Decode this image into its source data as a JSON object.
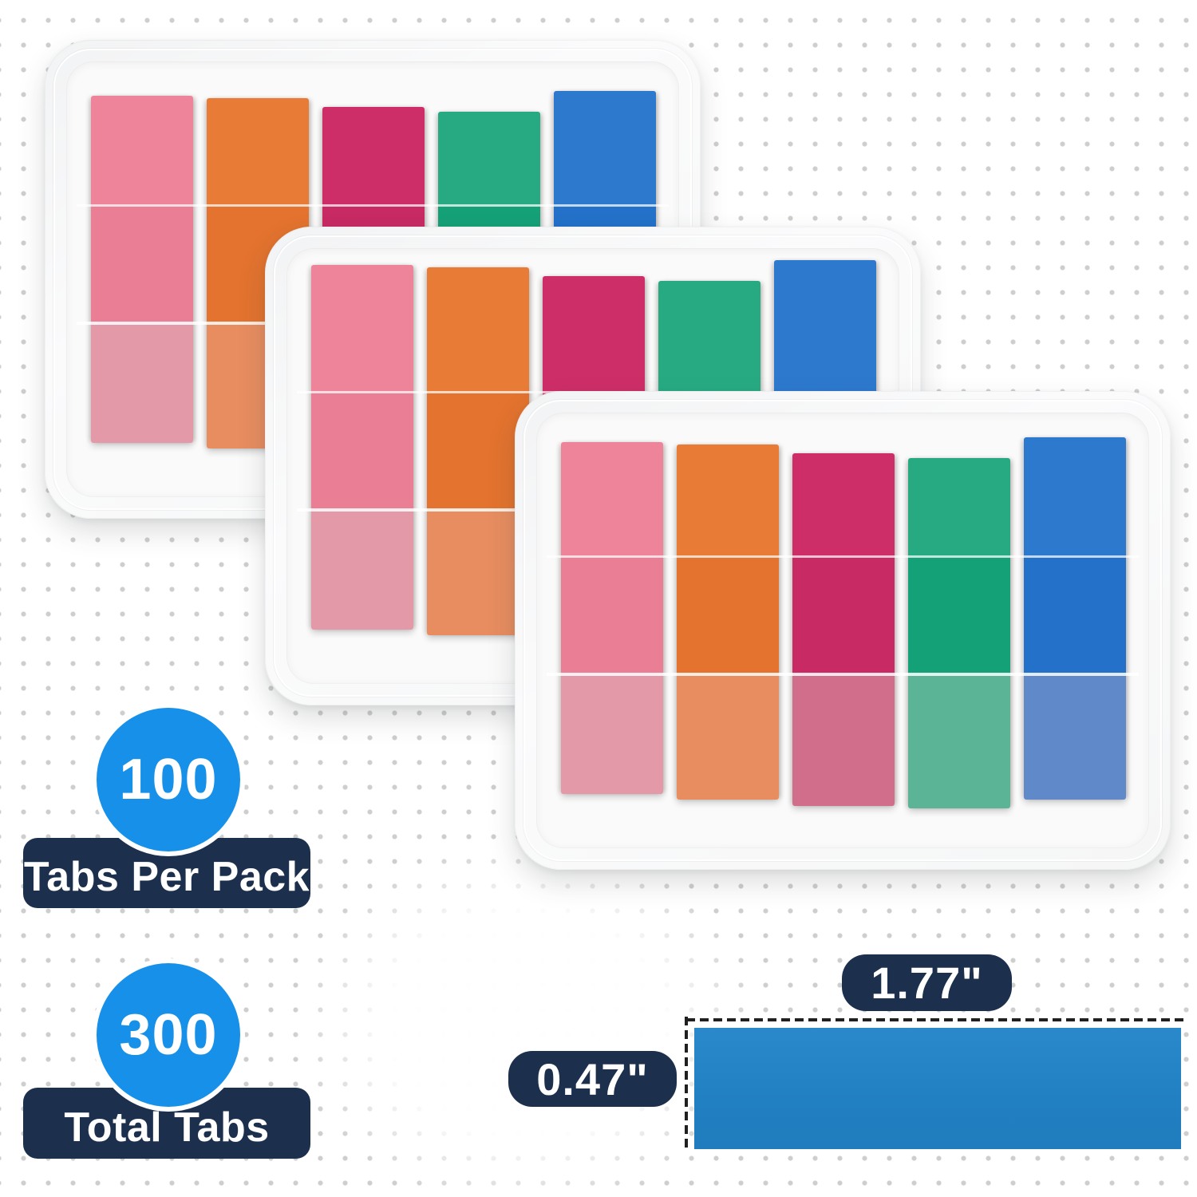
{
  "badges": [
    {
      "value": "100",
      "label": "Tabs Per Pack"
    },
    {
      "value": "300",
      "label": "Total Tabs"
    }
  ],
  "dimension_labels": {
    "width": "1.77\"",
    "height": "0.47\""
  },
  "cases": {
    "count": 3,
    "tabs_per_case_colors": [
      {
        "name": "pink",
        "top": "#ee8499",
        "mid": "#e97e95",
        "muted": "#e399a8"
      },
      {
        "name": "orange",
        "top": "#e87b35",
        "mid": "#e3732e",
        "muted": "#e78d60"
      },
      {
        "name": "magenta",
        "top": "#ce2e68",
        "mid": "#c82a63",
        "muted": "#d06e8b"
      },
      {
        "name": "green",
        "top": "#27aa82",
        "mid": "#15a178",
        "muted": "#5bb496"
      },
      {
        "name": "blue",
        "top": "#2d79ce",
        "mid": "#2371c9",
        "muted": "#6089c9"
      }
    ]
  },
  "accent_colors": {
    "badge_blue": "#1690e8",
    "navy": "#1c2f4d",
    "swatch_blue": "#2383c6",
    "dash_black": "#202020"
  }
}
